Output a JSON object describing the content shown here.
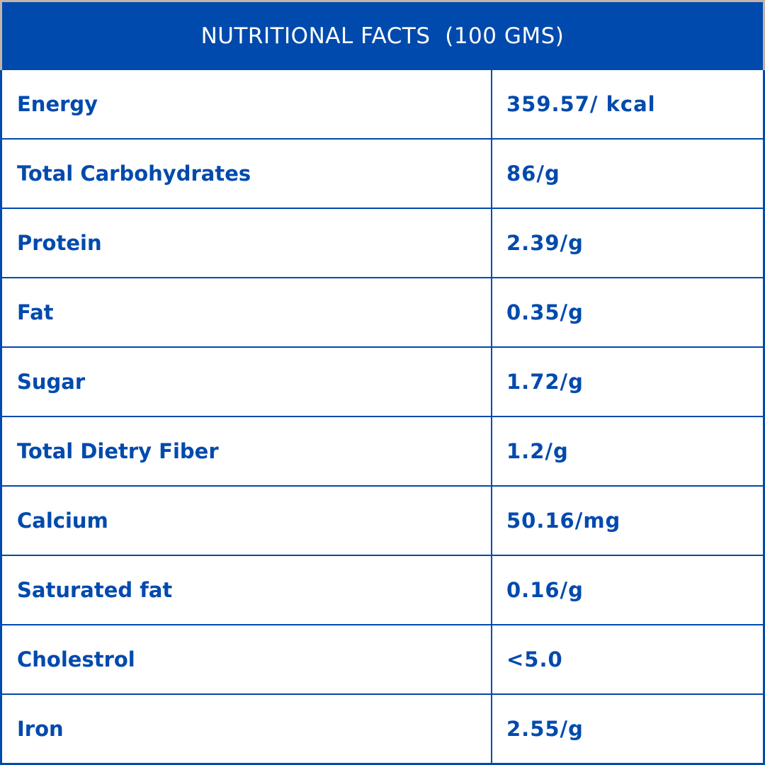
{
  "header": {
    "title": "NUTRITIONAL FACTS  (100 GMS)"
  },
  "colors": {
    "primary": "#004AAD",
    "background": "#FFFFFF",
    "frame_edge": "#C4B3A6"
  },
  "rows": [
    {
      "name": "Energy",
      "value": "359.57/ kcal"
    },
    {
      "name": "Total Carbohydrates",
      "value": "86/g"
    },
    {
      "name": "Protein",
      "value": "2.39/g"
    },
    {
      "name": "Fat",
      "value": "0.35/g"
    },
    {
      "name": "Sugar",
      "value": "1.72/g"
    },
    {
      "name": "Total Dietry Fiber",
      "value": "1.2/g"
    },
    {
      "name": "Calcium",
      "value": "50.16/mg"
    },
    {
      "name": "Saturated fat",
      "value": "0.16/g"
    },
    {
      "name": "Cholestrol",
      "value": "<5.0"
    },
    {
      "name": "Iron",
      "value": "2.55/g"
    }
  ]
}
